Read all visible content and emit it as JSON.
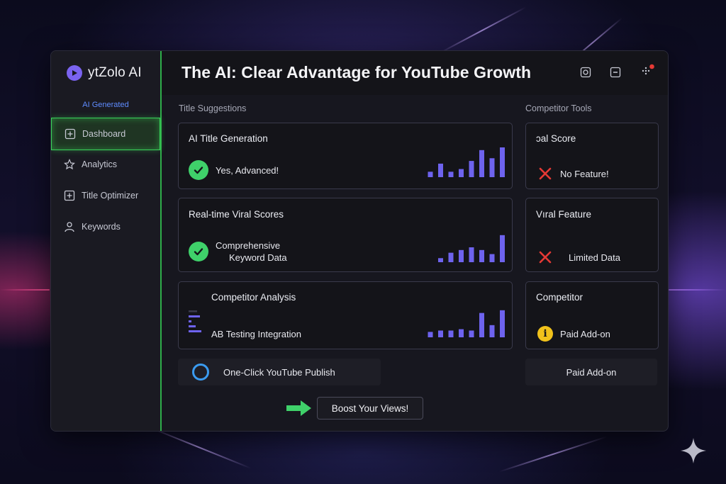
{
  "sidebar": {
    "brand": "ytZolo AI",
    "badge": "AI Generated",
    "items": [
      {
        "label": "Dashboard",
        "icon": "add-square-icon",
        "active": true
      },
      {
        "label": "Analytics",
        "icon": "star-outline-icon"
      },
      {
        "label": "Title Optimizer",
        "icon": "plus-box-icon"
      },
      {
        "label": "Keywords",
        "icon": "user-icon"
      }
    ]
  },
  "header": {
    "title": "The AI: Clear Advantage for YouTube Growth",
    "icons": [
      "camera-icon",
      "minimize-icon",
      "menu-dots-icon"
    ],
    "notification_color": "#e53935"
  },
  "main": {
    "left_label": "Title Suggestions",
    "right_label": "Competitor Tools",
    "left_cards": [
      {
        "title": "AI Title Generation",
        "status": "Yes, Advanced!",
        "status_icon": "check-circle-icon",
        "bars": [
          0.2,
          0.5,
          0.2,
          0.3,
          0.6,
          1.0,
          0.7,
          1.1
        ]
      },
      {
        "title": "Real-time Viral Scores",
        "status_line1": "Comprehensive",
        "status_line2": "Keyword Data",
        "status_icon": "check-circle-icon",
        "bars": [
          0.15,
          0.35,
          0.45,
          0.55,
          0.45,
          0.3,
          1.0
        ]
      },
      {
        "title": "Competitor Analysis",
        "status": "AB Testing Integration",
        "status_icon": "list-lines-icon",
        "bars": [
          0.2,
          0.25,
          0.25,
          0.3,
          0.25,
          0.9,
          0.45,
          1.0
        ]
      }
    ],
    "right_cards": [
      {
        "title": "ɔal Score",
        "status": "No Feature!",
        "status_icon": "x-icon"
      },
      {
        "title": "Vıral Feature",
        "status": "Limited Data",
        "status_icon": "x-icon"
      },
      {
        "title": "Competitor",
        "status": "Paid Add-on",
        "status_icon": "info-icon"
      }
    ],
    "publish_button": "One-Click YouTube Publish",
    "paid_button": "Paid Add-on",
    "cta_button": "Boost Your Views!"
  },
  "colors": {
    "accent_green": "#3fd16a",
    "bar_purple": "#6e63ee",
    "danger_red": "#e53935",
    "info_yellow": "#f1c21b",
    "ring_blue": "#3a9bf0"
  }
}
